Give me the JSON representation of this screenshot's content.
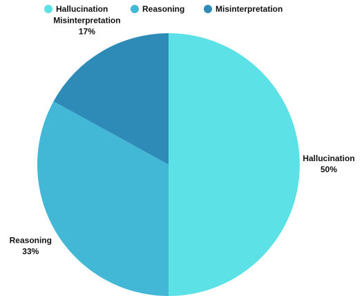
{
  "chart_data": {
    "type": "pie",
    "categories": [
      "Hallucination",
      "Reasoning",
      "Misinterpretation"
    ],
    "values": [
      50,
      33,
      17
    ],
    "value_labels": [
      "50%",
      "33%",
      "17%"
    ],
    "colors": [
      "#5ce1e6",
      "#43b8d6",
      "#2e8bb8"
    ],
    "legend": "top"
  }
}
